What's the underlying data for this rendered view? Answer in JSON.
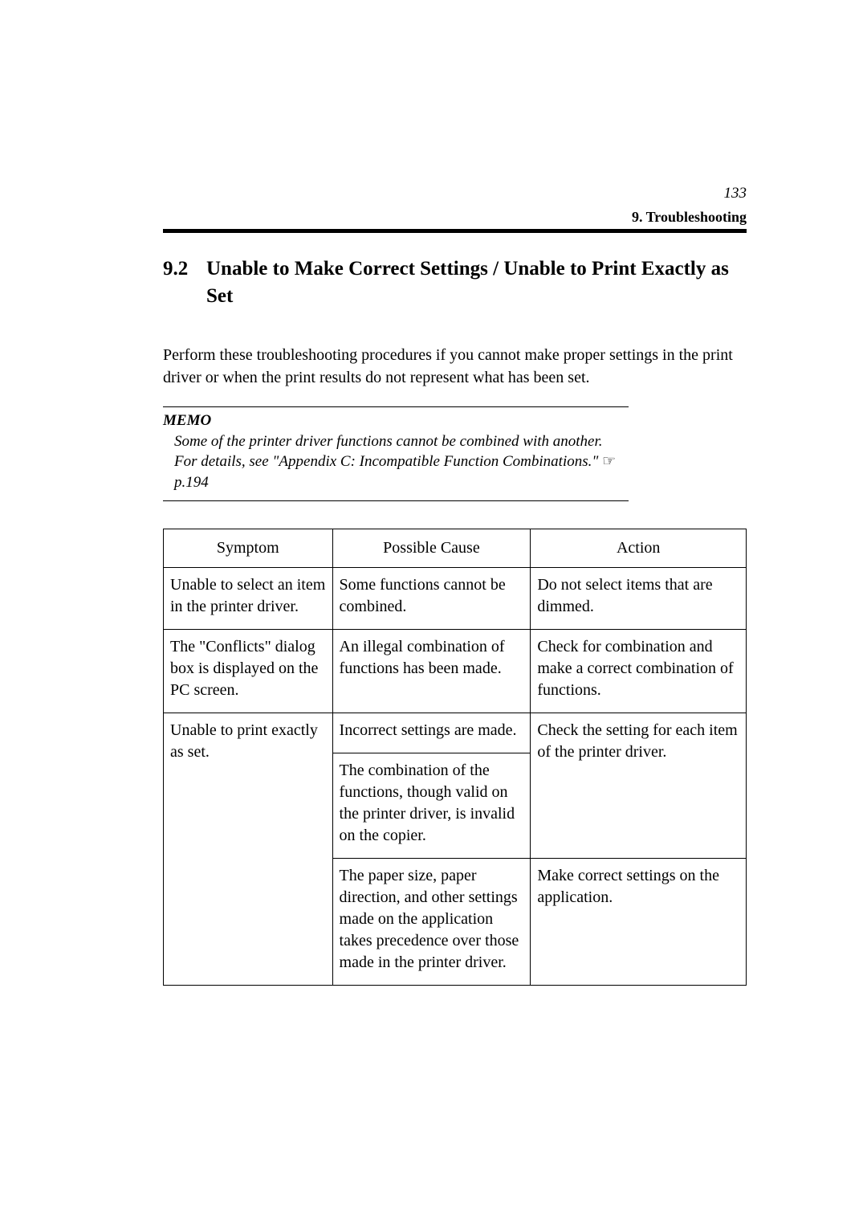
{
  "page": {
    "number": "133",
    "header": "9. Troubleshooting"
  },
  "section": {
    "number": "9.2",
    "title": "Unable to Make Correct Settings / Unable to Print Exactly as Set"
  },
  "intro": "Perform these troubleshooting procedures if you cannot make proper settings in the print driver or when the print results do not represent what has been set.",
  "memo": {
    "label": "MEMO",
    "text_prefix": "Some of the printer driver functions cannot be combined with another.  For details, see \"Appendix C: Incompatible Function Combinations.\" ",
    "page_ref": "p.194"
  },
  "table": {
    "headers": {
      "symptom": "Symptom",
      "cause": "Possible Cause",
      "action": "Action"
    },
    "rows": {
      "r1": {
        "symptom": "Unable to select an item in the printer driver.",
        "cause": "Some functions cannot be combined.",
        "action": "Do not select items that are dimmed."
      },
      "r2": {
        "symptom": "The \"Conflicts\" dialog box is displayed on the PC screen.",
        "cause": "An illegal combination of functions has been made.",
        "action": "Check for combination and make a correct combination of functions."
      },
      "r3": {
        "symptom": "Unable to print exactly as set.",
        "cause1": "Incorrect settings are made.",
        "action1": "Check the setting for each item of the printer driver.",
        "cause2": "The combination of the functions, though valid on the printer driver, is invalid on the copier.",
        "cause3": "The paper size, paper direction, and other settings made on the application takes precedence over those made in the printer driver.",
        "action3": "Make correct settings on the application."
      }
    }
  }
}
